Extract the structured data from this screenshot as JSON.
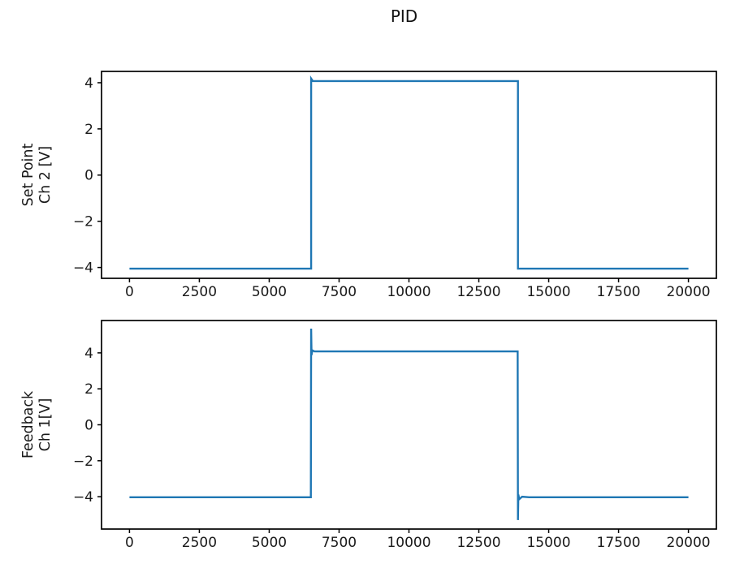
{
  "figure": {
    "title": "PID",
    "background_color": "#ffffff",
    "line_color": "#1f77b4",
    "axis_color": "#000000",
    "text_color": "#1a1a1a"
  },
  "chart_data": [
    {
      "type": "line",
      "name": "set-point-subplot",
      "title": "",
      "xlabel": "",
      "ylabel_lines": [
        "Set Point",
        "Ch 2 [V]"
      ],
      "xlim": [
        -1000,
        21000
      ],
      "ylim": [
        -4.47,
        4.49
      ],
      "xticks": [
        0,
        2500,
        5000,
        7500,
        10000,
        12500,
        15000,
        17500,
        20000
      ],
      "xtick_labels": [
        "0",
        "2500",
        "5000",
        "7500",
        "10000",
        "12500",
        "15000",
        "17500",
        "20000"
      ],
      "yticks": [
        -4,
        -2,
        0,
        2,
        4
      ],
      "ytick_labels": [
        "−4",
        "−2",
        "0",
        "2",
        "4"
      ],
      "grid": false,
      "legend": null,
      "series": [
        {
          "name": "Set Point Ch 2 [V]",
          "color": "#1f77b4",
          "points": [
            [
              0,
              -4.05
            ],
            [
              6500,
              -4.05
            ],
            [
              6500,
              4.18
            ],
            [
              6560,
              4.07
            ],
            [
              13900,
              4.07
            ],
            [
              13900,
              -4.05
            ],
            [
              20000,
              -4.05
            ]
          ]
        }
      ]
    },
    {
      "type": "line",
      "name": "feedback-subplot",
      "title": "",
      "xlabel": "",
      "ylabel_lines": [
        "Feedback",
        "Ch 1[V]"
      ],
      "xlim": [
        -1000,
        21000
      ],
      "ylim": [
        -5.8,
        5.8
      ],
      "xticks": [
        0,
        2500,
        5000,
        7500,
        10000,
        12500,
        15000,
        17500,
        20000
      ],
      "xtick_labels": [
        "0",
        "2500",
        "5000",
        "7500",
        "10000",
        "12500",
        "15000",
        "17500",
        "20000"
      ],
      "yticks": [
        -4,
        -2,
        0,
        2,
        4
      ],
      "ytick_labels": [
        "−4",
        "−2",
        "0",
        "2",
        "4"
      ],
      "grid": false,
      "legend": null,
      "series": [
        {
          "name": "Feedback Ch 1[V]",
          "color": "#1f77b4",
          "points": [
            [
              0,
              -4.03
            ],
            [
              6490,
              -4.03
            ],
            [
              6500,
              5.35
            ],
            [
              6515,
              3.88
            ],
            [
              6545,
              4.14
            ],
            [
              6620,
              4.08
            ],
            [
              13890,
              4.08
            ],
            [
              13900,
              -5.3
            ],
            [
              13915,
              -3.88
            ],
            [
              13945,
              -4.14
            ],
            [
              14050,
              -4.0
            ],
            [
              14300,
              -4.03
            ],
            [
              20000,
              -4.03
            ]
          ]
        }
      ]
    }
  ]
}
